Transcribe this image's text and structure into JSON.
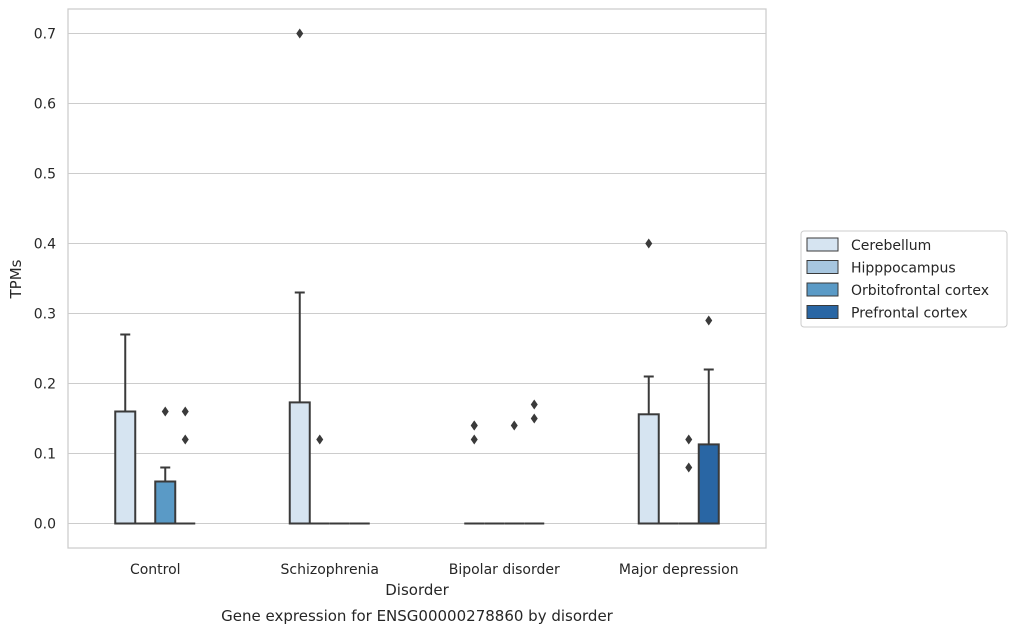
{
  "chart_data": {
    "type": "box",
    "title": "",
    "caption": "Gene expression for ENSG00000278860 by disorder",
    "xlabel": "Disorder",
    "ylabel": "TPMs",
    "ylim": [
      -0.035,
      0.735
    ],
    "yticks": [
      0.0,
      0.1,
      0.2,
      0.3,
      0.4,
      0.5,
      0.6,
      0.7
    ],
    "ytick_labels": [
      "0.0",
      "0.1",
      "0.2",
      "0.3",
      "0.4",
      "0.5",
      "0.6",
      "0.7"
    ],
    "categories": [
      "Control",
      "Schizophrenia",
      "Bipolar disorder",
      "Major depression"
    ],
    "grid": "horizontal",
    "legend_position": "right",
    "series": [
      {
        "name": "Cerebellum",
        "color": "#d6e4f1",
        "boxes": [
          {
            "q1": 0.0,
            "median": 0.0,
            "q3": 0.16,
            "whisker_low": 0.0,
            "whisker_high": 0.27,
            "outliers": []
          },
          {
            "q1": 0.0,
            "median": 0.0,
            "q3": 0.173,
            "whisker_low": 0.0,
            "whisker_high": 0.33,
            "outliers": [
              0.7
            ]
          },
          {
            "q1": 0.0,
            "median": 0.0,
            "q3": 0.0,
            "whisker_low": 0.0,
            "whisker_high": 0.0,
            "outliers": [
              0.12,
              0.14,
              0.14
            ]
          },
          {
            "q1": 0.0,
            "median": 0.0,
            "q3": 0.156,
            "whisker_low": 0.0,
            "whisker_high": 0.21,
            "outliers": [
              0.4
            ]
          }
        ]
      },
      {
        "name": "Hipppocampus",
        "color": "#a7c6df",
        "boxes": [
          {
            "q1": 0.0,
            "median": 0.0,
            "q3": 0.0,
            "whisker_low": 0.0,
            "whisker_high": 0.0,
            "outliers": []
          },
          {
            "q1": 0.0,
            "median": 0.0,
            "q3": 0.0,
            "whisker_low": 0.0,
            "whisker_high": 0.0,
            "outliers": [
              0.12
            ]
          },
          {
            "q1": 0.0,
            "median": 0.0,
            "q3": 0.0,
            "whisker_low": 0.0,
            "whisker_high": 0.0,
            "outliers": []
          },
          {
            "q1": 0.0,
            "median": 0.0,
            "q3": 0.0,
            "whisker_low": 0.0,
            "whisker_high": 0.0,
            "outliers": []
          }
        ]
      },
      {
        "name": "Orbitofrontal cortex",
        "color": "#5a9ac6",
        "boxes": [
          {
            "q1": 0.0,
            "median": 0.0,
            "q3": 0.06,
            "whisker_low": 0.0,
            "whisker_high": 0.08,
            "outliers": [
              0.16
            ]
          },
          {
            "q1": 0.0,
            "median": 0.0,
            "q3": 0.0,
            "whisker_low": 0.0,
            "whisker_high": 0.0,
            "outliers": []
          },
          {
            "q1": 0.0,
            "median": 0.0,
            "q3": 0.0,
            "whisker_low": 0.0,
            "whisker_high": 0.0,
            "outliers": [
              0.14
            ]
          },
          {
            "q1": 0.0,
            "median": 0.0,
            "q3": 0.0,
            "whisker_low": 0.0,
            "whisker_high": 0.0,
            "outliers": [
              0.08,
              0.12
            ]
          }
        ]
      },
      {
        "name": "Prefrontal cortex",
        "color": "#2966a4",
        "boxes": [
          {
            "q1": 0.0,
            "median": 0.0,
            "q3": 0.0,
            "whisker_low": 0.0,
            "whisker_high": 0.0,
            "outliers": [
              0.12,
              0.16
            ]
          },
          {
            "q1": 0.0,
            "median": 0.0,
            "q3": 0.0,
            "whisker_low": 0.0,
            "whisker_high": 0.0,
            "outliers": []
          },
          {
            "q1": 0.0,
            "median": 0.0,
            "q3": 0.0,
            "whisker_low": 0.0,
            "whisker_high": 0.0,
            "outliers": [
              0.15,
              0.17
            ]
          },
          {
            "q1": 0.0,
            "median": 0.0,
            "q3": 0.113,
            "whisker_low": 0.0,
            "whisker_high": 0.22,
            "outliers": [
              0.29
            ]
          }
        ]
      }
    ]
  }
}
